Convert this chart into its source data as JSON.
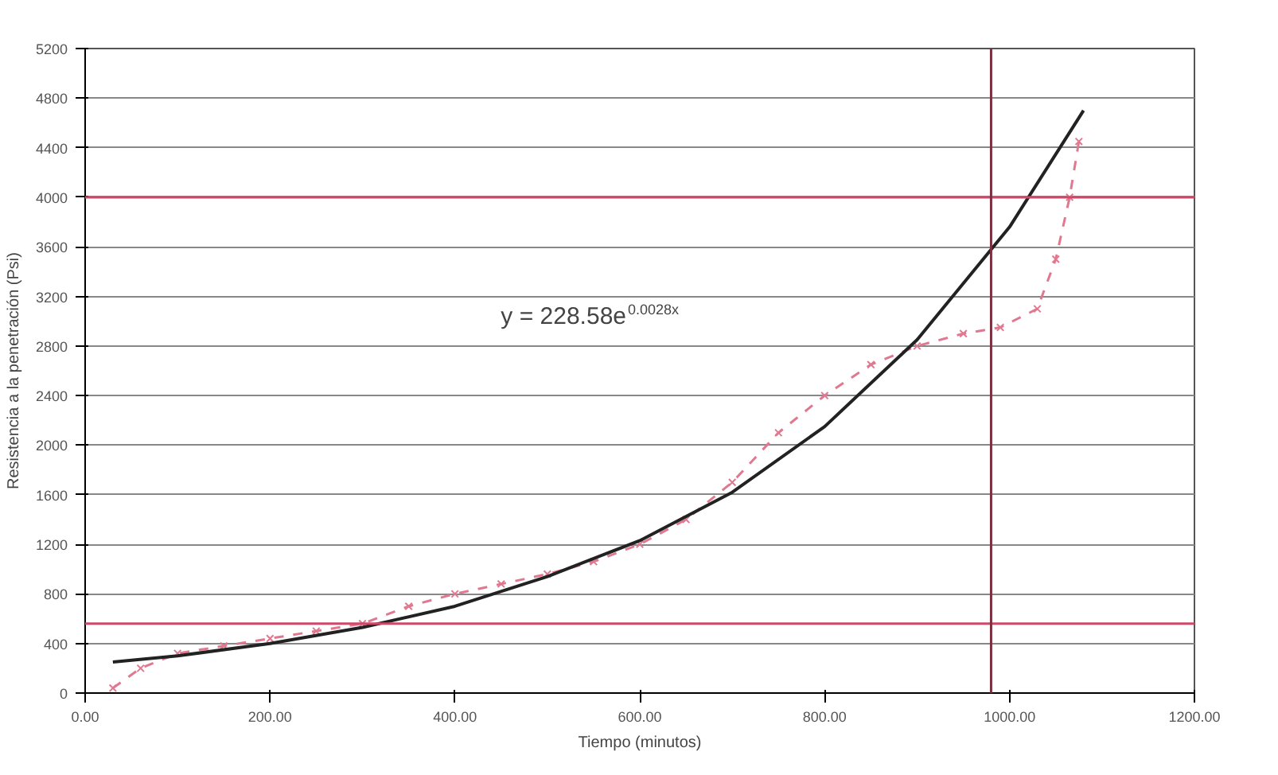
{
  "chart_data": {
    "type": "line",
    "xlabel": "Tiempo (minutos)",
    "ylabel": "Resistencia a la penetración (Psi)",
    "x": [
      30,
      60,
      100,
      150,
      200,
      250,
      300,
      350,
      400,
      450,
      500,
      550,
      600,
      650,
      700,
      750,
      800,
      850,
      900,
      950,
      990,
      1030,
      1050,
      1065,
      1075
    ],
    "series": [
      {
        "color": "#e07890",
        "marker": "cross",
        "line_style": "dashed",
        "values": [
          40,
          200,
          320,
          380,
          440,
          500,
          560,
          700,
          800,
          880,
          960,
          1060,
          1200,
          1400,
          1700,
          2100,
          2400,
          2650,
          2800,
          2900,
          2950,
          3100,
          3500,
          4000,
          4450
        ]
      },
      {
        "color": "#222222",
        "marker": "none",
        "line_style": "solid",
        "x": [
          30,
          100,
          200,
          300,
          400,
          500,
          600,
          700,
          800,
          900,
          1000,
          1080
        ],
        "values": [
          250,
          300,
          400,
          530,
          700,
          940,
          1230,
          1620,
          2150,
          2850,
          3760,
          4700
        ]
      }
    ],
    "annotations": [
      "y = 228.58e$^{0.0028x}$"
    ],
    "ref_lines": [
      {
        "axis": "y",
        "value": 4000,
        "color": "#d04868"
      },
      {
        "axis": "y",
        "value": 560,
        "color": "#d04868"
      },
      {
        "axis": "x",
        "value": 980,
        "color": "#7a3040"
      }
    ],
    "xlim": [
      0,
      1200
    ],
    "xticks": [
      {
        "value": 0,
        "label": "0.00"
      },
      {
        "value": 200,
        "label": "200.00"
      },
      {
        "value": 400,
        "label": "400.00"
      },
      {
        "value": 600,
        "label": "600.00"
      },
      {
        "value": 800,
        "label": "800.00"
      },
      {
        "value": 1000,
        "label": "1000.00"
      },
      {
        "value": 1200,
        "label": "1200.00"
      }
    ],
    "ylim": [
      0,
      5200
    ],
    "yticks": [
      0,
      400,
      800,
      1200,
      1600,
      2000,
      2400,
      2800,
      3200,
      3600,
      4000,
      4400,
      4800,
      5200
    ],
    "grid": "y"
  }
}
